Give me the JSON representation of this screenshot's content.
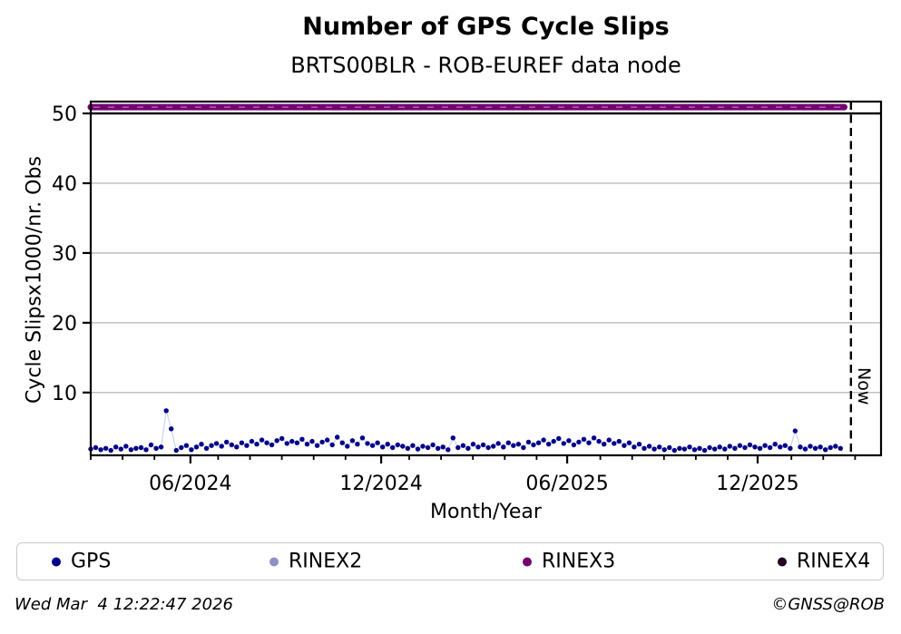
{
  "page": {
    "title": "Number of GPS Cycle Slips",
    "subtitle": "BRTS00BLR - ROB-EUREF data node",
    "footer_timestamp": "Wed Mar  4 12:22:47 2026",
    "footer_credit": "©GNSS@ROB"
  },
  "chart_data": {
    "type": "scatter",
    "title": "Number of GPS Cycle Slips",
    "subtitle": "BRTS00BLR - ROB-EUREF data node",
    "xlabel": "Month/Year",
    "ylabel": "Cycle Slipsx1000/nr. Obs",
    "x_axis": {
      "unit": "months since 2024-03",
      "domain_months": [
        0,
        24.84
      ],
      "major_ticks": [
        {
          "label": "06/2024",
          "month": 3.13
        },
        {
          "label": "12/2024",
          "month": 9.12
        },
        {
          "label": "06/2025",
          "month": 14.96
        },
        {
          "label": "12/2025",
          "month": 20.94
        }
      ],
      "minor_tick_months": [
        0,
        1,
        2,
        4,
        5,
        6,
        7,
        8,
        10,
        11,
        12,
        13,
        14,
        16,
        17,
        18,
        19,
        20,
        22,
        23,
        24
      ]
    },
    "y_axis": {
      "domain": [
        1.0,
        51.7
      ],
      "ticks": [
        10,
        20,
        30,
        40,
        50
      ],
      "gridline_values": [
        10,
        20,
        30,
        40
      ],
      "solid_line_value": 50
    },
    "now_marker": {
      "month": 23.87,
      "label": "Now"
    },
    "legend": {
      "position": "bottom",
      "entries": [
        "GPS",
        "RINEX2",
        "RINEX3",
        "RINEX4"
      ]
    },
    "series": [
      {
        "name": "GPS",
        "color": "#00008B",
        "line_color": "#c9cfeb",
        "x_start_month": 0,
        "x_step_month": 0.158,
        "values": [
          1.9,
          2.1,
          1.8,
          2.0,
          1.7,
          2.2,
          1.9,
          2.3,
          1.8,
          2.0,
          2.1,
          1.8,
          2.5,
          2.0,
          2.2,
          7.4,
          4.8,
          1.7,
          2.1,
          2.4,
          1.8,
          2.2,
          2.6,
          2.0,
          2.4,
          2.7,
          2.3,
          2.9,
          2.5,
          2.2,
          2.8,
          2.4,
          3.0,
          2.6,
          3.2,
          2.8,
          2.5,
          3.1,
          3.4,
          2.7,
          3.0,
          2.8,
          3.3,
          2.6,
          3.0,
          2.4,
          2.9,
          3.2,
          2.5,
          3.6,
          2.8,
          2.3,
          3.1,
          2.6,
          3.5,
          2.7,
          2.4,
          2.8,
          2.2,
          2.6,
          2.1,
          2.5,
          2.3,
          2.0,
          2.4,
          1.9,
          2.3,
          2.1,
          2.5,
          2.0,
          2.2,
          1.8,
          3.5,
          2.1,
          2.4,
          2.0,
          2.6,
          2.2,
          2.5,
          2.1,
          2.3,
          2.7,
          2.2,
          2.8,
          2.4,
          2.6,
          2.1,
          2.9,
          2.5,
          2.8,
          3.2,
          2.6,
          3.0,
          3.4,
          2.7,
          3.1,
          2.5,
          2.9,
          3.3,
          2.8,
          3.5,
          3.0,
          2.6,
          3.2,
          2.7,
          3.0,
          2.4,
          2.8,
          2.2,
          2.6,
          2.0,
          2.3,
          1.9,
          2.2,
          1.8,
          2.1,
          1.7,
          2.0,
          1.9,
          2.2,
          1.8,
          2.0,
          1.7,
          2.1,
          1.9,
          2.2,
          1.9,
          2.3,
          2.0,
          2.4,
          2.1,
          2.5,
          2.2,
          2.0,
          2.4,
          2.1,
          2.6,
          2.2,
          2.4,
          2.0,
          4.5,
          2.2,
          1.9,
          2.3,
          2.0,
          2.2,
          1.8,
          2.1,
          2.3,
          2.0
        ]
      },
      {
        "name": "RINEX2",
        "color": "#9090C8",
        "values": []
      },
      {
        "name": "RINEX3",
        "color": "#740074",
        "dash_color": "#b06ab0",
        "constant_value": 50.9,
        "x_range_months": [
          0,
          23.66
        ]
      },
      {
        "name": "RINEX4",
        "color": "#200020",
        "values": []
      }
    ]
  }
}
